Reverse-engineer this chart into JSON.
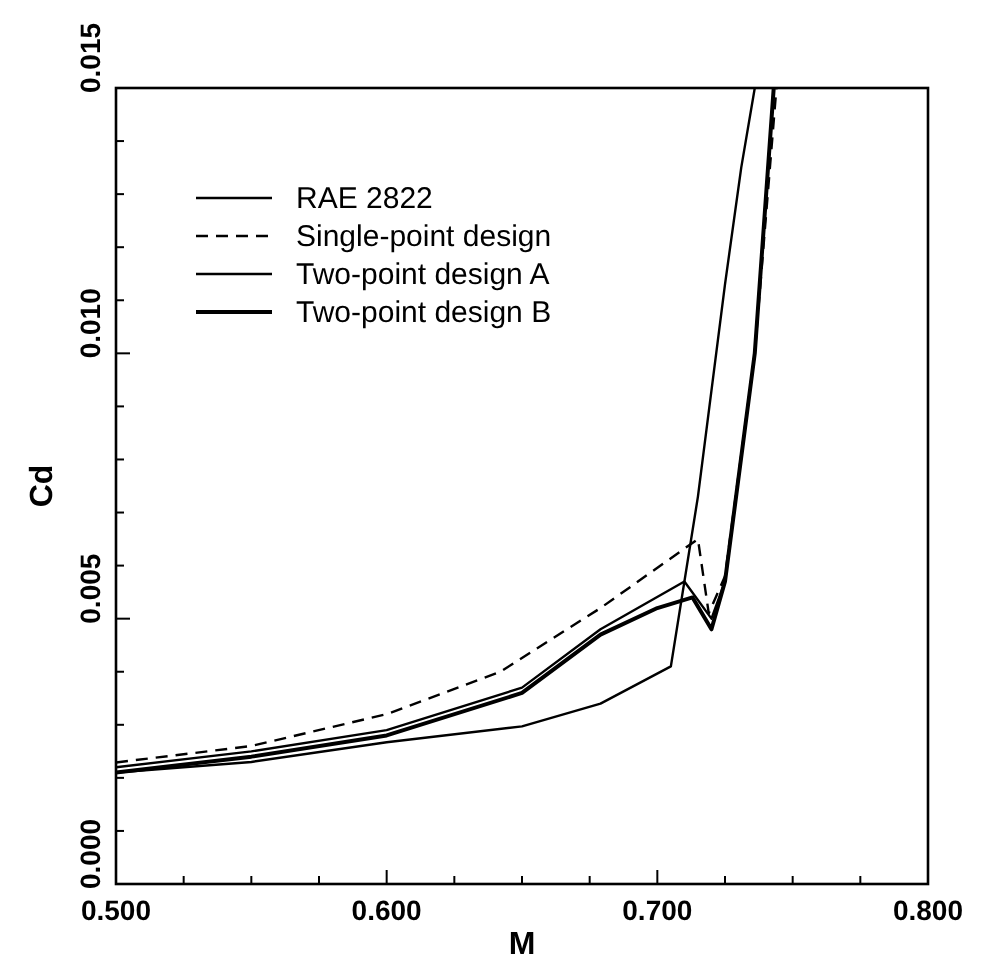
{
  "chart_data": {
    "type": "line",
    "xlabel": "M",
    "ylabel": "Cd",
    "xlim": [
      0.5,
      0.8
    ],
    "ylim": [
      0,
      0.015
    ],
    "xticks": [
      {
        "value": 0.5,
        "label": "0.500"
      },
      {
        "value": 0.525,
        "label": null
      },
      {
        "value": 0.55,
        "label": null
      },
      {
        "value": 0.575,
        "label": null
      },
      {
        "value": 0.6,
        "label": "0.600"
      },
      {
        "value": 0.625,
        "label": null
      },
      {
        "value": 0.65,
        "label": null
      },
      {
        "value": 0.675,
        "label": null
      },
      {
        "value": 0.7,
        "label": "0.700"
      },
      {
        "value": 0.725,
        "label": null
      },
      {
        "value": 0.75,
        "label": null
      },
      {
        "value": 0.775,
        "label": null
      },
      {
        "value": 0.8,
        "label": "0.800"
      }
    ],
    "yticks": [
      {
        "value": 0,
        "label": "0.000"
      },
      {
        "value": 0.001,
        "label": null
      },
      {
        "value": 0.002,
        "label": null
      },
      {
        "value": 0.003,
        "label": null
      },
      {
        "value": 0.004,
        "label": null
      },
      {
        "value": 0.005,
        "label": "0.005"
      },
      {
        "value": 0.006,
        "label": null
      },
      {
        "value": 0.007,
        "label": null
      },
      {
        "value": 0.008,
        "label": null
      },
      {
        "value": 0.009,
        "label": null
      },
      {
        "value": 0.01,
        "label": "0.010"
      },
      {
        "value": 0.011,
        "label": null
      },
      {
        "value": 0.012,
        "label": null
      },
      {
        "value": 0.013,
        "label": null
      },
      {
        "value": 0.014,
        "label": null
      },
      {
        "value": 0.015,
        "label": "0.015"
      }
    ],
    "grid": false,
    "legend": "top left",
    "series": [
      {
        "name": "RAE 2822",
        "color": "#000000",
        "line_style": "solid",
        "x": [
          0.5,
          0.55,
          0.6,
          0.65,
          0.679,
          0.705,
          0.715,
          0.725,
          0.731,
          0.736
        ],
        "values": [
          0.0021,
          0.0023,
          0.00267,
          0.00297,
          0.0034,
          0.0041,
          0.0073,
          0.0113,
          0.0135,
          0.015
        ]
      },
      {
        "name": "Single-point design",
        "color": "#000000",
        "line_style": "dashed",
        "x": [
          0.5,
          0.55,
          0.6,
          0.642,
          0.679,
          0.715,
          0.719,
          0.725,
          0.736,
          0.744
        ],
        "values": [
          0.00229,
          0.0026,
          0.0032,
          0.004,
          0.0052,
          0.0065,
          0.0051,
          0.0058,
          0.01,
          0.015
        ]
      },
      {
        "name": "Two-point design A",
        "color": "#000000",
        "line_style": "solid",
        "x": [
          0.5,
          0.55,
          0.6,
          0.65,
          0.679,
          0.71,
          0.72,
          0.725,
          0.736,
          0.743
        ],
        "values": [
          0.0022,
          0.0025,
          0.0029,
          0.0037,
          0.0048,
          0.0057,
          0.005,
          0.0057,
          0.01,
          0.015
        ]
      },
      {
        "name": "Two-point design B",
        "color": "#000000",
        "line_style": "solid",
        "x": [
          0.5,
          0.55,
          0.6,
          0.65,
          0.679,
          0.7,
          0.713,
          0.72,
          0.725,
          0.736,
          0.743
        ],
        "values": [
          0.0021,
          0.0024,
          0.0028,
          0.0036,
          0.0047,
          0.0052,
          0.0054,
          0.0048,
          0.0057,
          0.01,
          0.015
        ]
      }
    ]
  }
}
